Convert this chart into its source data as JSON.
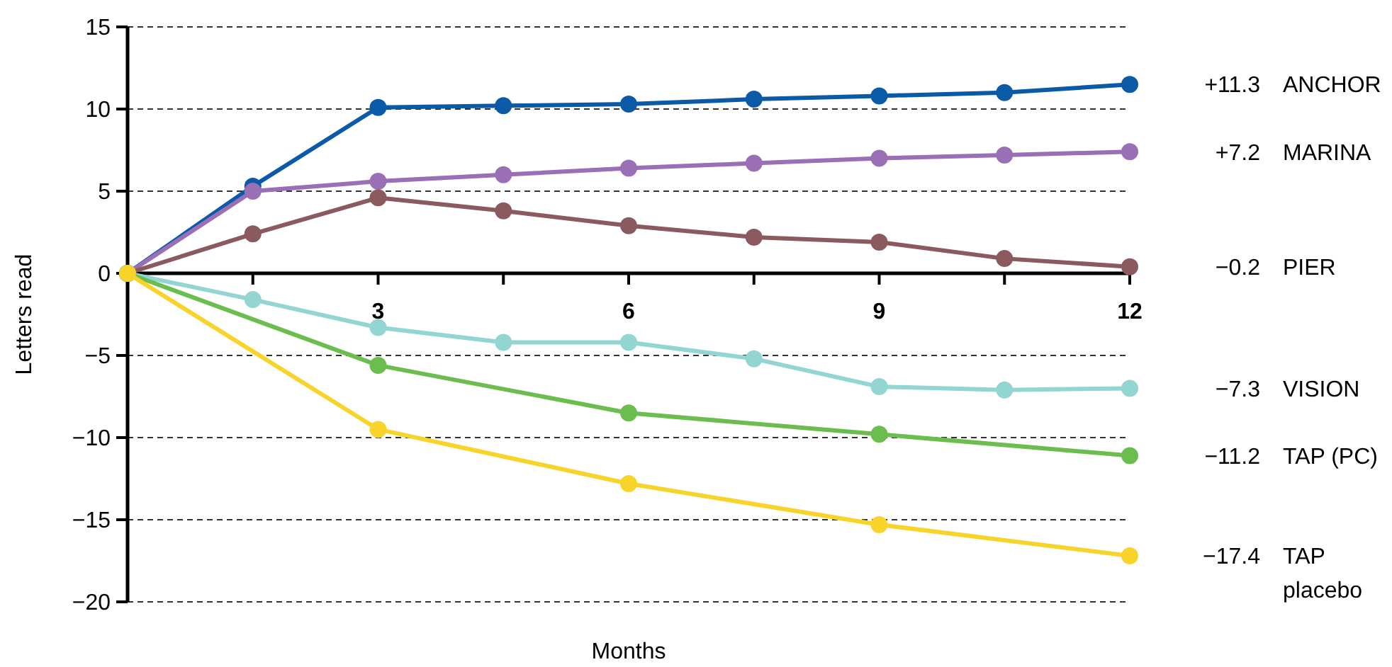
{
  "chart_data": {
    "type": "line",
    "xlabel": "Months",
    "ylabel": "Letters read",
    "xlim": [
      0,
      12
    ],
    "xticks": [
      {
        "value": 0,
        "label": null
      },
      {
        "value": 1.5,
        "label": null
      },
      3,
      {
        "value": 4.5,
        "label": null
      },
      6,
      {
        "value": 7.5,
        "label": null
      },
      9,
      {
        "value": 10.5,
        "label": null
      },
      12
    ],
    "ylim": [
      -20,
      15
    ],
    "yticks": [
      {
        "value": -20,
        "label": "−20"
      },
      {
        "value": -15,
        "label": "−15"
      },
      {
        "value": -10,
        "label": "−10"
      },
      {
        "value": -5,
        "label": "−5"
      },
      0,
      5,
      10,
      15
    ],
    "grid": "y",
    "marker": "circle",
    "line_style": "solid",
    "series": [
      {
        "name": "ANCHOR",
        "color": "#0b5aa8",
        "x": [
          0,
          1.5,
          3,
          4.5,
          6,
          7.5,
          9,
          10.5,
          12
        ],
        "values": [
          0,
          5.3,
          10.1,
          10.2,
          10.3,
          10.6,
          10.8,
          11.0,
          11.5
        ]
      },
      {
        "name": "MARINA",
        "color": "#9b6fb5",
        "x": [
          0,
          1.5,
          3,
          4.5,
          6,
          7.5,
          9,
          10.5,
          12
        ],
        "values": [
          0,
          5.0,
          5.6,
          6.0,
          6.4,
          6.7,
          7.0,
          7.2,
          7.4
        ]
      },
      {
        "name": "PIER",
        "color": "#8b5a5e",
        "x": [
          0,
          1.5,
          3,
          4.5,
          6,
          7.5,
          9,
          10.5,
          12
        ],
        "values": [
          0,
          2.4,
          4.6,
          3.8,
          2.9,
          2.2,
          1.9,
          0.9,
          0.4
        ]
      },
      {
        "name": "VISION",
        "color": "#92d5d3",
        "x": [
          0,
          1.5,
          3,
          4.5,
          6,
          7.5,
          9,
          10.5,
          12
        ],
        "values": [
          0,
          -1.6,
          -3.3,
          -4.2,
          -4.2,
          -5.2,
          -6.9,
          -7.1,
          -7.0
        ]
      },
      {
        "name": "TAP (PC)",
        "color": "#6bbd4e",
        "x": [
          0,
          3,
          6,
          9,
          12
        ],
        "values": [
          0,
          -5.6,
          -8.5,
          -9.8,
          -11.1
        ]
      },
      {
        "name": "TAP\nplacebo",
        "color": "#f8d42a",
        "x": [
          0,
          3,
          6,
          9,
          12
        ],
        "values": [
          0,
          -9.5,
          -12.8,
          -15.3,
          -17.2
        ]
      }
    ],
    "annotations": [
      "+11.3",
      "+7.2",
      "−0.2",
      "−7.3",
      "−11.2",
      "−17.4"
    ]
  }
}
